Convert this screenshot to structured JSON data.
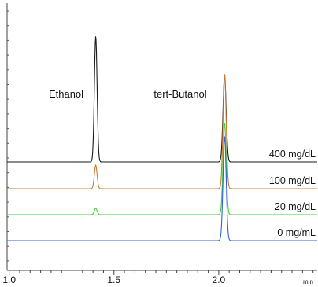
{
  "chart_data": {
    "type": "line",
    "xlabel": "min",
    "xlim": [
      0.99,
      2.47
    ],
    "x_ticks": [
      1.0,
      1.5,
      2.0
    ],
    "tick_labels": [
      "1.0",
      "1.5",
      "2.0"
    ],
    "peaks": [
      {
        "name": "Ethanol",
        "rt": 1.413
      },
      {
        "name": "tert-Butanol",
        "rt": 2.028
      }
    ],
    "series": [
      {
        "name": "400 mg/dL",
        "color": "#1a1a1a",
        "ethanol_height": 1.0,
        "tbutanol_height": 0.69
      },
      {
        "name": "100 mg/dL",
        "color": "#c87a30",
        "ethanol_height": 0.187,
        "tbutanol_height": 0.91
      },
      {
        "name": "20 mg/dL",
        "color": "#3fcf3f",
        "ethanol_height": 0.05,
        "tbutanol_height": 0.73
      },
      {
        "name": "0 mg/mL",
        "color": "#2f63d6",
        "ethanol_height": 0.0,
        "tbutanol_height": 0.83
      }
    ]
  }
}
